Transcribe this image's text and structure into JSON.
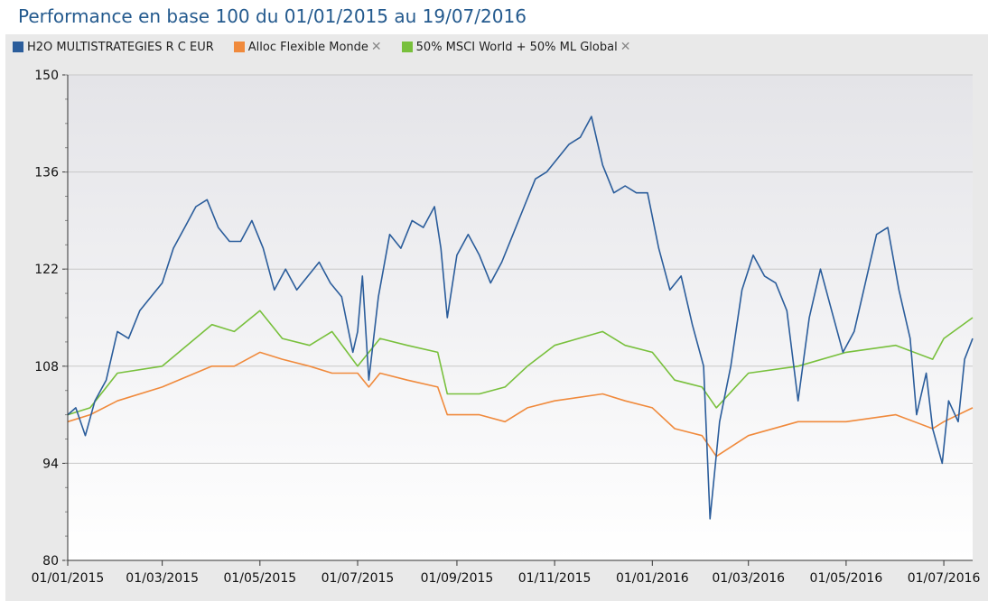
{
  "title": "Performance en base 100 du 01/01/2015 au 19/07/2016",
  "legend": [
    {
      "name": "H2O MULTISTRATEGIES R C EUR",
      "color": "#2b5d9b",
      "removable": false,
      "remove_icon": "close-icon"
    },
    {
      "name": "Alloc Flexible Monde",
      "color": "#f08a3c",
      "removable": true,
      "remove_icon": "close-icon"
    },
    {
      "name": "50% MSCI World + 50% ML Global",
      "color": "#78c03c",
      "removable": true,
      "remove_icon": "close-icon"
    }
  ],
  "chart_data": {
    "type": "line",
    "ylim": [
      80,
      150
    ],
    "yticks": [
      "80",
      "94",
      "108",
      "122",
      "136",
      "150"
    ],
    "xlim": [
      "01/01/2015",
      "19/07/2016"
    ],
    "xticks": [
      "01/01/2015",
      "01/03/2015",
      "01/05/2015",
      "01/07/2015",
      "01/09/2015",
      "01/11/2015",
      "01/01/2016",
      "01/03/2016",
      "01/05/2016",
      "01/07/2016"
    ],
    "grid": true,
    "legend_position": "top-left",
    "series": [
      {
        "name": "H2O MULTISTRATEGIES R C EUR",
        "color": "#2b5d9b",
        "points": [
          [
            "01/01/2015",
            101
          ],
          [
            "06/01/2015",
            102
          ],
          [
            "12/01/2015",
            98
          ],
          [
            "18/01/2015",
            103
          ],
          [
            "25/01/2015",
            106
          ],
          [
            "01/02/2015",
            113
          ],
          [
            "08/02/2015",
            112
          ],
          [
            "15/02/2015",
            116
          ],
          [
            "22/02/2015",
            118
          ],
          [
            "01/03/2015",
            120
          ],
          [
            "08/03/2015",
            125
          ],
          [
            "15/03/2015",
            128
          ],
          [
            "22/03/2015",
            131
          ],
          [
            "29/03/2015",
            132
          ],
          [
            "05/04/2015",
            128
          ],
          [
            "12/04/2015",
            126
          ],
          [
            "19/04/2015",
            126
          ],
          [
            "26/04/2015",
            129
          ],
          [
            "03/05/2015",
            125
          ],
          [
            "10/05/2015",
            119
          ],
          [
            "17/05/2015",
            122
          ],
          [
            "24/05/2015",
            119
          ],
          [
            "31/05/2015",
            121
          ],
          [
            "07/06/2015",
            123
          ],
          [
            "14/06/2015",
            120
          ],
          [
            "21/06/2015",
            118
          ],
          [
            "28/06/2015",
            110
          ],
          [
            "01/07/2015",
            113
          ],
          [
            "04/07/2015",
            121
          ],
          [
            "08/07/2015",
            106
          ],
          [
            "14/07/2015",
            118
          ],
          [
            "21/07/2015",
            127
          ],
          [
            "28/07/2015",
            125
          ],
          [
            "04/08/2015",
            129
          ],
          [
            "11/08/2015",
            128
          ],
          [
            "18/08/2015",
            131
          ],
          [
            "22/08/2015",
            125
          ],
          [
            "26/08/2015",
            115
          ],
          [
            "01/09/2015",
            124
          ],
          [
            "08/09/2015",
            127
          ],
          [
            "15/09/2015",
            124
          ],
          [
            "22/09/2015",
            120
          ],
          [
            "29/09/2015",
            123
          ],
          [
            "06/10/2015",
            127
          ],
          [
            "13/10/2015",
            131
          ],
          [
            "20/10/2015",
            135
          ],
          [
            "27/10/2015",
            136
          ],
          [
            "03/11/2015",
            138
          ],
          [
            "10/11/2015",
            140
          ],
          [
            "17/11/2015",
            141
          ],
          [
            "24/11/2015",
            144
          ],
          [
            "01/12/2015",
            137
          ],
          [
            "08/12/2015",
            133
          ],
          [
            "15/12/2015",
            134
          ],
          [
            "22/12/2015",
            133
          ],
          [
            "29/12/2015",
            133
          ],
          [
            "05/01/2016",
            125
          ],
          [
            "12/01/2016",
            119
          ],
          [
            "19/01/2016",
            121
          ],
          [
            "26/01/2016",
            114
          ],
          [
            "02/02/2016",
            108
          ],
          [
            "06/02/2016",
            86
          ],
          [
            "12/02/2016",
            100
          ],
          [
            "19/02/2016",
            108
          ],
          [
            "26/02/2016",
            119
          ],
          [
            "04/03/2016",
            124
          ],
          [
            "11/03/2016",
            121
          ],
          [
            "18/03/2016",
            120
          ],
          [
            "25/03/2016",
            116
          ],
          [
            "01/04/2016",
            103
          ],
          [
            "08/04/2016",
            115
          ],
          [
            "15/04/2016",
            122
          ],
          [
            "22/04/2016",
            116
          ],
          [
            "29/04/2016",
            110
          ],
          [
            "06/05/2016",
            113
          ],
          [
            "13/05/2016",
            120
          ],
          [
            "20/05/2016",
            127
          ],
          [
            "27/05/2016",
            128
          ],
          [
            "03/06/2016",
            119
          ],
          [
            "10/06/2016",
            112
          ],
          [
            "14/06/2016",
            101
          ],
          [
            "20/06/2016",
            107
          ],
          [
            "24/06/2016",
            99
          ],
          [
            "30/06/2016",
            94
          ],
          [
            "04/07/2016",
            103
          ],
          [
            "10/07/2016",
            100
          ],
          [
            "14/07/2016",
            109
          ],
          [
            "19/07/2016",
            112
          ]
        ]
      },
      {
        "name": "Alloc Flexible Monde",
        "color": "#f08a3c",
        "points": [
          [
            "01/01/2015",
            100
          ],
          [
            "15/01/2015",
            101
          ],
          [
            "01/02/2015",
            103
          ],
          [
            "01/03/2015",
            105
          ],
          [
            "01/04/2015",
            108
          ],
          [
            "15/04/2015",
            108
          ],
          [
            "01/05/2015",
            110
          ],
          [
            "15/05/2015",
            109
          ],
          [
            "01/06/2015",
            108
          ],
          [
            "15/06/2015",
            107
          ],
          [
            "01/07/2015",
            107
          ],
          [
            "08/07/2015",
            105
          ],
          [
            "15/07/2015",
            107
          ],
          [
            "01/08/2015",
            106
          ],
          [
            "20/08/2015",
            105
          ],
          [
            "26/08/2015",
            101
          ],
          [
            "15/09/2015",
            101
          ],
          [
            "01/10/2015",
            100
          ],
          [
            "15/10/2015",
            102
          ],
          [
            "01/11/2015",
            103
          ],
          [
            "01/12/2015",
            104
          ],
          [
            "15/12/2015",
            103
          ],
          [
            "01/01/2016",
            102
          ],
          [
            "15/01/2016",
            99
          ],
          [
            "01/02/2016",
            98
          ],
          [
            "10/02/2016",
            95
          ],
          [
            "01/03/2016",
            98
          ],
          [
            "01/04/2016",
            100
          ],
          [
            "01/05/2016",
            100
          ],
          [
            "01/06/2016",
            101
          ],
          [
            "24/06/2016",
            99
          ],
          [
            "01/07/2016",
            100
          ],
          [
            "19/07/2016",
            102
          ]
        ]
      },
      {
        "name": "50% MSCI World + 50% ML Global",
        "color": "#78c03c",
        "points": [
          [
            "01/01/2015",
            101
          ],
          [
            "15/01/2015",
            102
          ],
          [
            "01/02/2015",
            107
          ],
          [
            "01/03/2015",
            108
          ],
          [
            "01/04/2015",
            114
          ],
          [
            "15/04/2015",
            113
          ],
          [
            "01/05/2015",
            116
          ],
          [
            "15/05/2015",
            112
          ],
          [
            "01/06/2015",
            111
          ],
          [
            "15/06/2015",
            113
          ],
          [
            "01/07/2015",
            108
          ],
          [
            "15/07/2015",
            112
          ],
          [
            "01/08/2015",
            111
          ],
          [
            "20/08/2015",
            110
          ],
          [
            "26/08/2015",
            104
          ],
          [
            "15/09/2015",
            104
          ],
          [
            "01/10/2015",
            105
          ],
          [
            "15/10/2015",
            108
          ],
          [
            "01/11/2015",
            111
          ],
          [
            "01/12/2015",
            113
          ],
          [
            "15/12/2015",
            111
          ],
          [
            "01/01/2016",
            110
          ],
          [
            "15/01/2016",
            106
          ],
          [
            "01/02/2016",
            105
          ],
          [
            "10/02/2016",
            102
          ],
          [
            "01/03/2016",
            107
          ],
          [
            "01/04/2016",
            108
          ],
          [
            "01/05/2016",
            110
          ],
          [
            "01/06/2016",
            111
          ],
          [
            "24/06/2016",
            109
          ],
          [
            "01/07/2016",
            112
          ],
          [
            "19/07/2016",
            115
          ]
        ]
      }
    ]
  }
}
